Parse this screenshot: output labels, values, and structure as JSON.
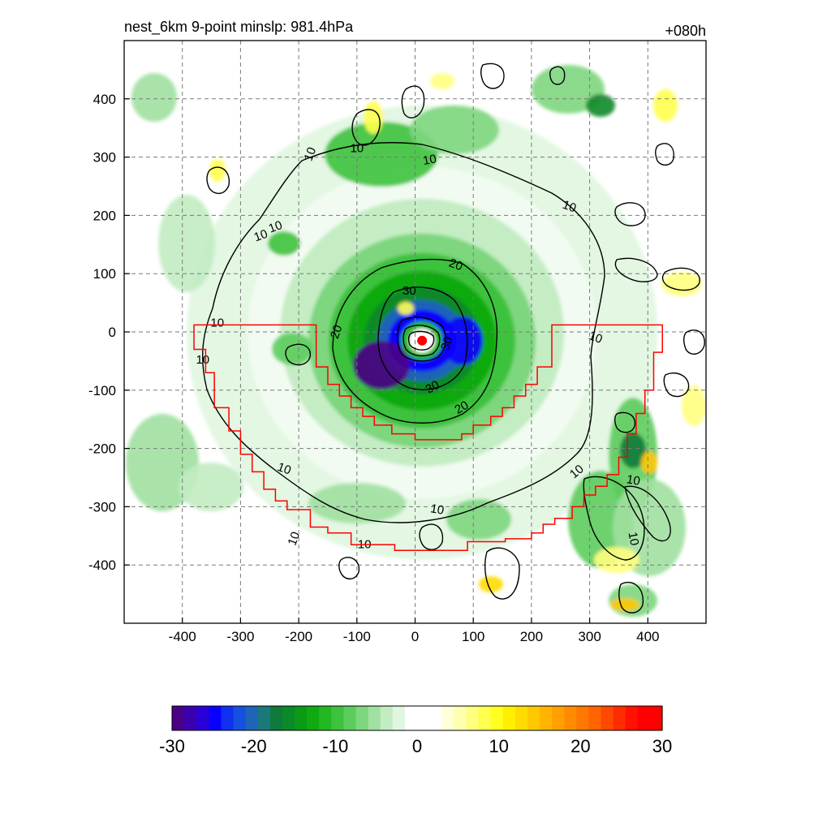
{
  "header": {
    "left_title": "nest_6km  9-point minslp: 981.4hPa",
    "right_title": "+080h"
  },
  "chart_data": {
    "type": "heatmap",
    "x_ticks": [
      -400,
      -300,
      -200,
      -100,
      0,
      100,
      200,
      300,
      400
    ],
    "y_ticks": [
      400,
      300,
      200,
      100,
      0,
      -100,
      -200,
      -300,
      -400
    ],
    "xlim": [
      -500,
      500
    ],
    "ylim": [
      -500,
      500
    ],
    "grid": true,
    "center": [
      12,
      -15
    ],
    "contour_levels": [
      10,
      20,
      30
    ],
    "colorbar": {
      "ticks": [
        -30,
        -20,
        -10,
        0,
        10,
        20,
        30
      ],
      "range": [
        -30,
        30
      ],
      "colors": [
        "#4b0088",
        "#3a00b0",
        "#2a00d8",
        "#0a00ff",
        "#1030f0",
        "#1550e0",
        "#1e64b8",
        "#1a7a7a",
        "#0f7a3c",
        "#0a8a28",
        "#0a9a14",
        "#10aa10",
        "#22b822",
        "#3cc23c",
        "#5ccc5c",
        "#7ed67e",
        "#a0e0a0",
        "#c2ecc2",
        "#e0f6e0",
        "#ffffff",
        "#ffffff",
        "#ffffff",
        "#ffffd8",
        "#ffffb0",
        "#ffff80",
        "#ffff50",
        "#ffff20",
        "#fff000",
        "#ffdc00",
        "#ffc800",
        "#ffb400",
        "#ffa000",
        "#ff8c00",
        "#ff7800",
        "#ff6400",
        "#ff4800",
        "#ff2c00",
        "#ff1000",
        "#ff0000",
        "#ff0000"
      ]
    },
    "annotations": {
      "contour_labels": [
        {
          "text": "10",
          "x": -180,
          "y": 305,
          "angle": -70
        },
        {
          "text": "10",
          "x": -100,
          "y": 315,
          "angle": 0
        },
        {
          "text": "10",
          "x": 25,
          "y": 295,
          "angle": -10
        },
        {
          "text": "10",
          "x": -240,
          "y": 180,
          "angle": -20
        },
        {
          "text": "10",
          "x": -265,
          "y": 165,
          "angle": -20
        },
        {
          "text": "10",
          "x": 265,
          "y": 215,
          "angle": 20
        },
        {
          "text": "10",
          "x": -340,
          "y": 15,
          "angle": 0
        },
        {
          "text": "10",
          "x": -365,
          "y": -48,
          "angle": 0
        },
        {
          "text": "10",
          "x": 310,
          "y": -10,
          "angle": 20
        },
        {
          "text": "10",
          "x": -225,
          "y": -235,
          "angle": 20
        },
        {
          "text": "10",
          "x": 278,
          "y": -240,
          "angle": -40
        },
        {
          "text": "10",
          "x": 375,
          "y": -255,
          "angle": 10
        },
        {
          "text": "10",
          "x": -208,
          "y": -355,
          "angle": -70
        },
        {
          "text": "10",
          "x": -87,
          "y": -365,
          "angle": 0
        },
        {
          "text": "10",
          "x": 38,
          "y": -305,
          "angle": 10
        },
        {
          "text": "10",
          "x": 375,
          "y": -355,
          "angle": 80
        },
        {
          "text": "20",
          "x": 70,
          "y": 115,
          "angle": 20
        },
        {
          "text": "20",
          "x": -135,
          "y": 0,
          "angle": -70
        },
        {
          "text": "20",
          "x": 80,
          "y": -130,
          "angle": -30
        },
        {
          "text": "30",
          "x": -10,
          "y": 70,
          "angle": 0
        },
        {
          "text": "30",
          "x": 55,
          "y": -20,
          "angle": -70
        },
        {
          "text": "30",
          "x": 30,
          "y": -95,
          "angle": -30
        }
      ]
    }
  },
  "colors": {
    "boundary": "#ff0000",
    "contour": "#000000",
    "grid": "#7a7a7a",
    "center_marker": "#ff0000"
  }
}
